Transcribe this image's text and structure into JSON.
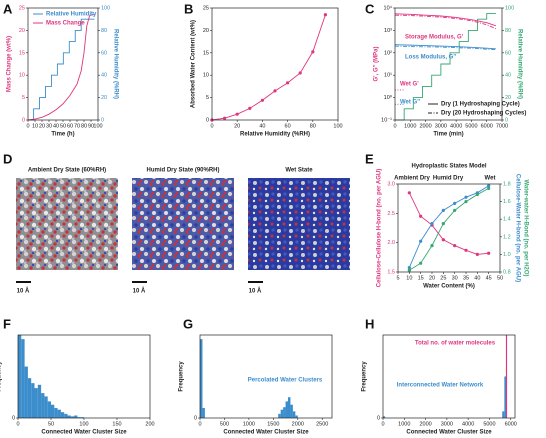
{
  "chart_data": [
    {
      "type": "line",
      "panel": "A",
      "xlabel": "Time (h)",
      "ylabel": "Mass Change (wt%)",
      "ylabel_color": "#e0357f",
      "ytick_color": "#e0357f",
      "y2tick_color": "#3c8dcc",
      "y2labels": [
        {
          "text": "Relative Humidity (%RH)",
          "color": "#3c8dcc"
        }
      ],
      "xlim": [
        0,
        100
      ],
      "xticks": [
        0,
        10,
        20,
        30,
        40,
        50,
        60,
        70,
        80,
        90,
        100
      ],
      "ylim": [
        0,
        25
      ],
      "yticks": [
        0,
        5,
        10,
        15,
        20,
        25
      ],
      "y2lim": [
        0,
        100
      ],
      "y2ticks": [
        0,
        20,
        40,
        60,
        80,
        100
      ],
      "legend_position": "upper left",
      "series": [
        {
          "name": "Relative Humidity",
          "color": "#3c8dcc",
          "axis": "y2",
          "style": "solid",
          "x": [
            0,
            8,
            8,
            16.5,
            16.5,
            25,
            25,
            33.5,
            33.5,
            42,
            42,
            50.5,
            50.5,
            59,
            59,
            67.5,
            67.5,
            76,
            76,
            95
          ],
          "values": [
            0,
            0,
            10,
            10,
            20,
            20,
            30,
            30,
            40,
            40,
            50,
            50,
            60,
            60,
            70,
            70,
            80,
            80,
            90,
            90
          ]
        },
        {
          "name": "Mass Change",
          "color": "#e0357f",
          "style": "solid",
          "x": [
            0,
            10,
            20,
            30,
            40,
            50,
            60,
            70,
            76,
            80,
            84,
            88,
            92,
            95
          ],
          "values": [
            0,
            0.2,
            0.6,
            1.3,
            2.3,
            3.6,
            5.5,
            8,
            11,
            15,
            21,
            23.3,
            23.5,
            23.5
          ]
        }
      ]
    },
    {
      "type": "line",
      "panel": "B",
      "xlabel": "Relative Humidity (%RH)",
      "ylabel": "Absorbed Water Content (wt%)",
      "xlim": [
        0,
        100
      ],
      "xticks": [
        0,
        20,
        40,
        60,
        80,
        100
      ],
      "ylim": [
        0,
        25
      ],
      "yticks": [
        0,
        5,
        10,
        15,
        20,
        25
      ],
      "series": [
        {
          "color": "#e0357f",
          "style": "solid",
          "marker": true,
          "x": [
            0,
            10,
            20,
            30,
            40,
            50,
            60,
            70,
            80,
            90
          ],
          "values": [
            0,
            0.4,
            1.3,
            2.6,
            4.4,
            6.5,
            8.3,
            10.5,
            15.2,
            23.5
          ]
        }
      ]
    },
    {
      "type": "line",
      "panel": "C",
      "xlabel": "Time (min)",
      "ylabel": "G', G'' (MPa)",
      "ylabel_color": "#e0357f",
      "y2tick_color": "#35a872",
      "y2labels": [
        {
          "text": "Relative Humidity (%RH)",
          "color": "#35a872"
        }
      ],
      "xlim": [
        0,
        7000
      ],
      "xticks": [
        0,
        1000,
        2000,
        3000,
        4000,
        5000,
        6000,
        7000
      ],
      "ylog": true,
      "ylim": [
        0.1,
        10000
      ],
      "yticks": [
        {
          "value": 0.1,
          "label": "10⁻¹"
        },
        {
          "value": 1,
          "label": "10⁰"
        },
        {
          "value": 10,
          "label": "10¹"
        },
        {
          "value": 100,
          "label": "10²"
        },
        {
          "value": 1000,
          "label": "10³"
        },
        {
          "value": 10000,
          "label": "10⁴"
        }
      ],
      "y2lim": [
        0,
        100
      ],
      "y2ticks": [
        0,
        20,
        40,
        60,
        80,
        100
      ],
      "annotations": [
        {
          "text": "Storage Modulus, G'",
          "color": "#e0357f"
        },
        {
          "text": "Loss Modulus, G''",
          "color": "#3c8dcc"
        },
        {
          "text": "Wet G'",
          "color": "#e0357f"
        },
        {
          "text": "Wet G''",
          "color": "#3c8dcc"
        }
      ],
      "legend_position": "lower right",
      "legend": [
        {
          "label": "Dry (1 Hydroshaping Cycle)",
          "style": "solid"
        },
        {
          "label": "Dry (20 Hydroshaping Cycles)",
          "style": "dashdot"
        }
      ],
      "series": [
        {
          "color": "#35a872",
          "axis": "y2",
          "style": "solid",
          "x": [
            0,
            600,
            600,
            1200,
            1200,
            1800,
            1800,
            2400,
            2400,
            3000,
            3000,
            3600,
            3600,
            4200,
            4200,
            4800,
            4800,
            5400,
            5400,
            6000,
            6000,
            6600
          ],
          "values": [
            0,
            0,
            10,
            10,
            20,
            20,
            30,
            30,
            40,
            40,
            50,
            50,
            60,
            60,
            70,
            70,
            80,
            80,
            90,
            90,
            95,
            95
          ]
        },
        {
          "color": "#e0357f",
          "style": "solid",
          "x": [
            0,
            1000,
            2000,
            3000,
            4000,
            5000,
            6000,
            6600
          ],
          "values": [
            5500,
            5200,
            4800,
            4400,
            3800,
            3000,
            2200,
            1600
          ]
        },
        {
          "color": "#e0357f",
          "style": "dashdot",
          "x": [
            0,
            1000,
            2000,
            3000,
            4000,
            5000,
            6000,
            6600
          ],
          "values": [
            4800,
            4600,
            4300,
            3900,
            3400,
            2700,
            1800,
            1200
          ]
        },
        {
          "color": "#3c8dcc",
          "style": "solid",
          "x": [
            0,
            1000,
            2000,
            3000,
            4000,
            5000,
            6000,
            6600
          ],
          "values": [
            230,
            220,
            210,
            200,
            190,
            175,
            160,
            150
          ]
        },
        {
          "color": "#3c8dcc",
          "style": "dashdot",
          "x": [
            0,
            1000,
            2000,
            3000,
            4000,
            5000,
            6000,
            6600
          ],
          "values": [
            200,
            190,
            185,
            180,
            170,
            160,
            145,
            140
          ]
        },
        {
          "color": "#e0357f",
          "style": "dotted",
          "x": [
            0,
            600
          ],
          "values": [
            2.2,
            2.2
          ]
        },
        {
          "color": "#3c8dcc",
          "style": "dotted",
          "x": [
            0,
            600
          ],
          "values": [
            0.5,
            0.5
          ]
        }
      ]
    },
    {
      "type": "line",
      "panel": "E",
      "title": "Hydroplastic States Model",
      "xlabel": "Water Content (%)",
      "ylabel": "Cellulose-Cellulose H-bond (no. per AGU)",
      "ylabel_color": "#e0357f",
      "ytick_color": "#e0357f",
      "y2tick_color": "#35a872",
      "y2labels": [
        {
          "text": "Cellulose-Water H-bond (no. per AGU)",
          "color": "#3c8dcc"
        },
        {
          "text": "Water-water H-Bond (no. per H2O)",
          "color": "#35a872"
        }
      ],
      "xlim": [
        5,
        50
      ],
      "xticks": [
        5,
        10,
        15,
        20,
        25,
        30,
        35,
        40,
        45,
        50
      ],
      "ylim": [
        1.5,
        3
      ],
      "yticks": [
        1.5,
        {
          "value": 2,
          "label": "2.0"
        },
        2.5,
        {
          "value": 3,
          "label": "3.0"
        }
      ],
      "y2lim": [
        0.8,
        1.8
      ],
      "y2ticks": [
        0.8,
        {
          "value": 1,
          "label": "1.0"
        },
        1.2,
        1.4,
        1.6,
        1.8
      ],
      "annotations": [
        {
          "text": "Ambient Dry",
          "color": "#222"
        },
        {
          "text": "Humid Dry",
          "color": "#222"
        },
        {
          "text": "Wet",
          "color": "#222"
        }
      ],
      "series": [
        {
          "color": "#e0357f",
          "style": "solid",
          "marker": true,
          "x": [
            10,
            15,
            20,
            25,
            30,
            35,
            40,
            45
          ],
          "values": [
            2.85,
            2.45,
            2.3,
            2.05,
            1.95,
            1.87,
            1.8,
            1.82
          ]
        },
        {
          "color": "#3c8dcc",
          "style": "solid",
          "marker": true,
          "axis": "y2",
          "x": [
            10,
            15,
            20,
            25,
            30,
            35,
            40,
            45
          ],
          "values": [
            0.85,
            1.15,
            1.35,
            1.5,
            1.58,
            1.65,
            1.7,
            1.78
          ]
        },
        {
          "color": "#35a872",
          "style": "solid",
          "marker": true,
          "axis": "y2",
          "x": [
            10,
            15,
            20,
            25,
            30,
            35,
            40,
            45
          ],
          "values": [
            0.82,
            0.9,
            1.1,
            1.35,
            1.5,
            1.6,
            1.68,
            1.75
          ]
        }
      ]
    },
    {
      "type": "histogram",
      "panel": "F",
      "xlabel": "Connected Water Cluster Size",
      "ylabel": "Frequency",
      "color": "#3c8dcc",
      "xlim": [
        0,
        200
      ],
      "xticks": [
        0,
        50,
        100,
        150,
        200
      ],
      "ylim": [
        0,
        1
      ],
      "yticks": [
        0
      ],
      "bins": [
        0,
        5,
        10,
        15,
        20,
        25,
        30,
        35,
        40,
        45,
        50,
        55,
        60,
        65,
        70,
        75,
        80,
        85,
        90,
        95,
        100
      ],
      "values": [
        1,
        0.95,
        0.62,
        0.48,
        0.42,
        0.36,
        0.4,
        0.3,
        0.26,
        0.2,
        0.16,
        0.12,
        0.1,
        0.07,
        0.05,
        0.03,
        0.02,
        0.03,
        0.01,
        0.01
      ]
    },
    {
      "type": "histogram",
      "panel": "G",
      "xlabel": "Connected Water Cluster Size",
      "ylabel": "Frequency",
      "color": "#3c8dcc",
      "xlim": [
        0,
        2700
      ],
      "xticks": [
        0,
        500,
        1000,
        1500,
        2000,
        2500
      ],
      "ylim": [
        0,
        1
      ],
      "yticks": [
        0
      ],
      "annotations": [
        {
          "text": "Percolated Water Clusters",
          "color": "#3c8dcc"
        }
      ],
      "bins": [
        0,
        50,
        100,
        150,
        200,
        250,
        300,
        350,
        400,
        450,
        500,
        550,
        600,
        650,
        700,
        750,
        800,
        850,
        900,
        950,
        1000,
        1050,
        1100,
        1150,
        1200,
        1250,
        1300,
        1350,
        1400,
        1450,
        1500,
        1550,
        1600,
        1650,
        1700,
        1750,
        1800,
        1850,
        1900,
        1950,
        2000
      ],
      "values": [
        0.95,
        0.12,
        0,
        0,
        0,
        0,
        0,
        0,
        0,
        0,
        0,
        0,
        0,
        0,
        0,
        0,
        0,
        0,
        0,
        0,
        0,
        0,
        0,
        0,
        0,
        0,
        0,
        0,
        0,
        0,
        0,
        0,
        0.05,
        0.1,
        0.13,
        0.2,
        0.25,
        0.16,
        0.08,
        0.03
      ]
    },
    {
      "type": "histogram",
      "panel": "H",
      "xlabel": "Connected Water Cluster Size",
      "ylabel": "Frequency",
      "color": "#3c8dcc",
      "xlim": [
        0,
        6200
      ],
      "xticks": [
        0,
        1000,
        2000,
        3000,
        4000,
        5000,
        6000
      ],
      "ylim": [
        0,
        1
      ],
      "yticks": [
        0
      ],
      "annotations": [
        {
          "text": "Total no. of water molecules",
          "color": "#e0357f"
        },
        {
          "text": "Interconnected Water Network",
          "color": "#3c8dcc"
        }
      ],
      "reference_line": {
        "value": 5800,
        "color": "#e0357f"
      },
      "bins": [
        0,
        100,
        5600,
        5700,
        5800
      ],
      "values": [
        0.02,
        0,
        0.08,
        0.5
      ]
    }
  ],
  "panel_d": {
    "panel": "D",
    "states": [
      {
        "title": "Ambient Dry State (60%RH)",
        "scale": "10 Å"
      },
      {
        "title": "Humid Dry State (90%RH)",
        "scale": "10 Å"
      },
      {
        "title": "Wet State",
        "scale": "10 Å"
      }
    ]
  }
}
